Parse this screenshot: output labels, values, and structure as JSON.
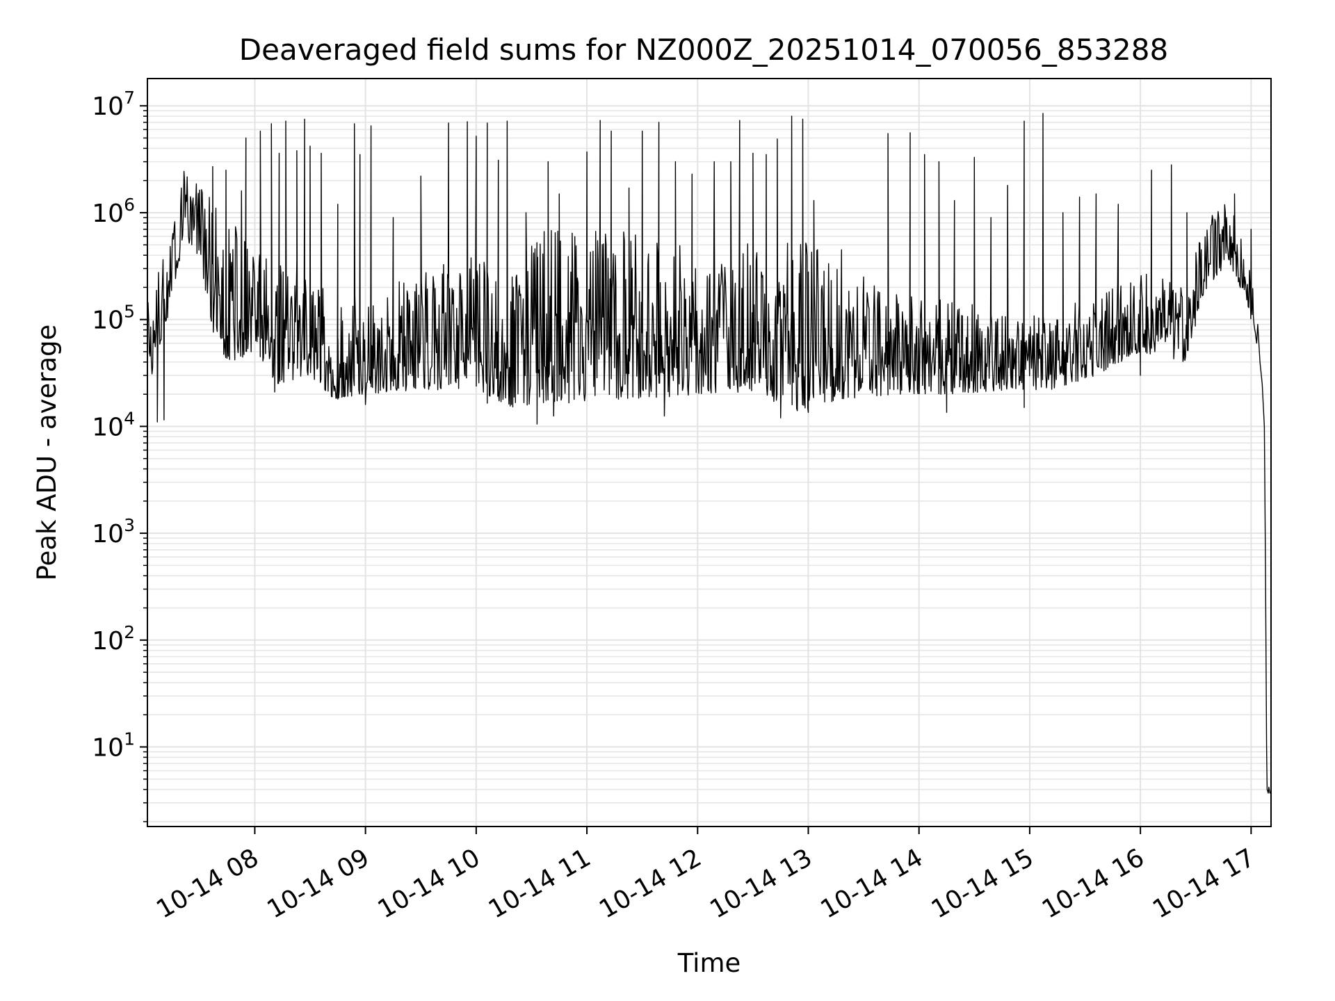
{
  "chart_data": {
    "type": "line",
    "title": "Deaveraged field sums for NZ000Z_20251014_070056_853288",
    "xlabel": "Time",
    "ylabel": "Peak ADU - average",
    "yscale": "log",
    "ylim": [
      1.8,
      18000000
    ],
    "xlim": [
      7.03,
      17.18
    ],
    "grid": true,
    "x_ticks": [
      {
        "value": 8,
        "label": "10-14 08"
      },
      {
        "value": 9,
        "label": "10-14 09"
      },
      {
        "value": 10,
        "label": "10-14 10"
      },
      {
        "value": 11,
        "label": "10-14 11"
      },
      {
        "value": 12,
        "label": "10-14 12"
      },
      {
        "value": 13,
        "label": "10-14 13"
      },
      {
        "value": 14,
        "label": "10-14 14"
      },
      {
        "value": 15,
        "label": "10-14 15"
      },
      {
        "value": 16,
        "label": "10-14 16"
      },
      {
        "value": 17,
        "label": "10-14 17"
      }
    ],
    "y_ticks": [
      {
        "exp": 1,
        "base": "10",
        "sup": "1"
      },
      {
        "exp": 2,
        "base": "10",
        "sup": "2"
      },
      {
        "exp": 3,
        "base": "10",
        "sup": "3"
      },
      {
        "exp": 4,
        "base": "10",
        "sup": "4"
      },
      {
        "exp": 5,
        "base": "10",
        "sup": "5"
      },
      {
        "exp": 6,
        "base": "10",
        "sup": "6"
      },
      {
        "exp": 7,
        "base": "10",
        "sup": "7"
      }
    ],
    "series": [
      {
        "name": "Deaveraged field sums",
        "color": "#000000",
        "envelope": [
          {
            "t": 7.03,
            "lo": 22000,
            "hi": 160000
          },
          {
            "t": 7.2,
            "lo": 90000,
            "hi": 500000
          },
          {
            "t": 7.35,
            "lo": 500000,
            "hi": 2500000
          },
          {
            "t": 7.5,
            "lo": 400000,
            "hi": 1800000
          },
          {
            "t": 7.65,
            "lo": 50000,
            "hi": 1200000
          },
          {
            "t": 7.8,
            "lo": 40000,
            "hi": 800000
          },
          {
            "t": 8.0,
            "lo": 50000,
            "hi": 600000
          },
          {
            "t": 8.2,
            "lo": 25000,
            "hi": 350000
          },
          {
            "t": 8.5,
            "lo": 30000,
            "hi": 400000
          },
          {
            "t": 8.7,
            "lo": 18000,
            "hi": 120000
          },
          {
            "t": 9.0,
            "lo": 20000,
            "hi": 200000
          },
          {
            "t": 9.5,
            "lo": 22000,
            "hi": 300000
          },
          {
            "t": 10.0,
            "lo": 22000,
            "hi": 400000
          },
          {
            "t": 10.3,
            "lo": 15000,
            "hi": 300000
          },
          {
            "t": 10.6,
            "lo": 16000,
            "hi": 700000
          },
          {
            "t": 11.0,
            "lo": 17000,
            "hi": 700000
          },
          {
            "t": 11.5,
            "lo": 18000,
            "hi": 650000
          },
          {
            "t": 12.0,
            "lo": 20000,
            "hi": 500000
          },
          {
            "t": 12.5,
            "lo": 20000,
            "hi": 550000
          },
          {
            "t": 12.9,
            "lo": 14000,
            "hi": 600000
          },
          {
            "t": 13.3,
            "lo": 18000,
            "hi": 350000
          },
          {
            "t": 13.8,
            "lo": 20000,
            "hi": 180000
          },
          {
            "t": 14.3,
            "lo": 20000,
            "hi": 160000
          },
          {
            "t": 14.8,
            "lo": 22000,
            "hi": 120000
          },
          {
            "t": 15.2,
            "lo": 22000,
            "hi": 110000
          },
          {
            "t": 15.6,
            "lo": 30000,
            "hi": 200000
          },
          {
            "t": 16.0,
            "lo": 50000,
            "hi": 280000
          },
          {
            "t": 16.4,
            "lo": 40000,
            "hi": 220000
          },
          {
            "t": 16.6,
            "lo": 200000,
            "hi": 900000
          },
          {
            "t": 16.8,
            "lo": 350000,
            "hi": 1300000
          },
          {
            "t": 16.95,
            "lo": 150000,
            "hi": 450000
          },
          {
            "t": 17.05,
            "lo": 60000,
            "hi": 150000
          }
        ],
        "spikes": [
          [
            7.62,
            2700000
          ],
          [
            7.74,
            2500000
          ],
          [
            7.88,
            1600000
          ],
          [
            7.92,
            5000000
          ],
          [
            8.05,
            5800000
          ],
          [
            8.15,
            6800000
          ],
          [
            8.22,
            3600000
          ],
          [
            8.28,
            7200000
          ],
          [
            8.38,
            3800000
          ],
          [
            8.45,
            7500000
          ],
          [
            8.5,
            4200000
          ],
          [
            8.6,
            3600000
          ],
          [
            8.75,
            1200000
          ],
          [
            8.9,
            6800000
          ],
          [
            8.95,
            3500000
          ],
          [
            9.05,
            6500000
          ],
          [
            9.25,
            900000
          ],
          [
            9.5,
            2200000
          ],
          [
            9.75,
            6900000
          ],
          [
            9.92,
            7100000
          ],
          [
            10.0,
            5200000
          ],
          [
            10.1,
            6900000
          ],
          [
            10.2,
            3100000
          ],
          [
            10.28,
            7200000
          ],
          [
            10.45,
            1000000
          ],
          [
            10.65,
            3000000
          ],
          [
            10.75,
            1500000
          ],
          [
            11.0,
            3700000
          ],
          [
            11.12,
            7300000
          ],
          [
            11.22,
            5800000
          ],
          [
            11.38,
            1700000
          ],
          [
            11.5,
            5800000
          ],
          [
            11.65,
            7000000
          ],
          [
            11.8,
            3000000
          ],
          [
            11.95,
            2300000
          ],
          [
            12.15,
            3000000
          ],
          [
            12.3,
            3000000
          ],
          [
            12.38,
            7300000
          ],
          [
            12.5,
            3600000
          ],
          [
            12.62,
            3500000
          ],
          [
            12.72,
            4900000
          ],
          [
            12.85,
            8000000
          ],
          [
            12.95,
            7500000
          ],
          [
            13.05,
            1300000
          ],
          [
            13.3,
            450000
          ],
          [
            13.5,
            250000
          ],
          [
            13.72,
            5500000
          ],
          [
            13.92,
            5600000
          ],
          [
            14.05,
            3500000
          ],
          [
            14.18,
            3000000
          ],
          [
            14.32,
            1300000
          ],
          [
            14.5,
            3300000
          ],
          [
            14.65,
            900000
          ],
          [
            14.8,
            1800000
          ],
          [
            14.95,
            7200000
          ],
          [
            15.12,
            8500000
          ],
          [
            15.3,
            1000000
          ],
          [
            15.45,
            1400000
          ],
          [
            15.6,
            1500000
          ],
          [
            15.8,
            1200000
          ],
          [
            16.1,
            2500000
          ],
          [
            16.28,
            2800000
          ],
          [
            16.42,
            1000000
          ],
          [
            16.55,
            450000
          ],
          [
            16.85,
            1500000
          ],
          [
            17.0,
            700000
          ]
        ],
        "dips": [
          [
            7.12,
            11000
          ],
          [
            7.18,
            11500
          ],
          [
            8.18,
            21000
          ],
          [
            8.75,
            18000
          ],
          [
            9.0,
            16000
          ],
          [
            10.1,
            16500
          ],
          [
            10.55,
            10500
          ],
          [
            10.7,
            12500
          ],
          [
            11.7,
            12500
          ],
          [
            12.75,
            12000
          ],
          [
            13.0,
            13500
          ],
          [
            14.25,
            13500
          ],
          [
            14.95,
            15000
          ],
          [
            16.0,
            30000
          ]
        ],
        "tail": [
          [
            17.06,
            90000
          ],
          [
            17.08,
            40000
          ],
          [
            17.1,
            25000
          ],
          [
            17.12,
            10000
          ],
          [
            17.13,
            500
          ],
          [
            17.14,
            10
          ],
          [
            17.145,
            4
          ],
          [
            17.155,
            3.7
          ],
          [
            17.16,
            4.2
          ],
          [
            17.17,
            3.7
          ],
          [
            17.18,
            3.8
          ]
        ]
      }
    ]
  }
}
